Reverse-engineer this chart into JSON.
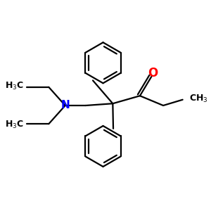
{
  "bg_color": "#ffffff",
  "bond_color": "#000000",
  "N_color": "#0000ff",
  "O_color": "#ff0000",
  "line_width": 1.6,
  "figsize": [
    3.0,
    3.0
  ],
  "dpi": 100,
  "xlim": [
    0,
    10
  ],
  "ylim": [
    0,
    10
  ]
}
